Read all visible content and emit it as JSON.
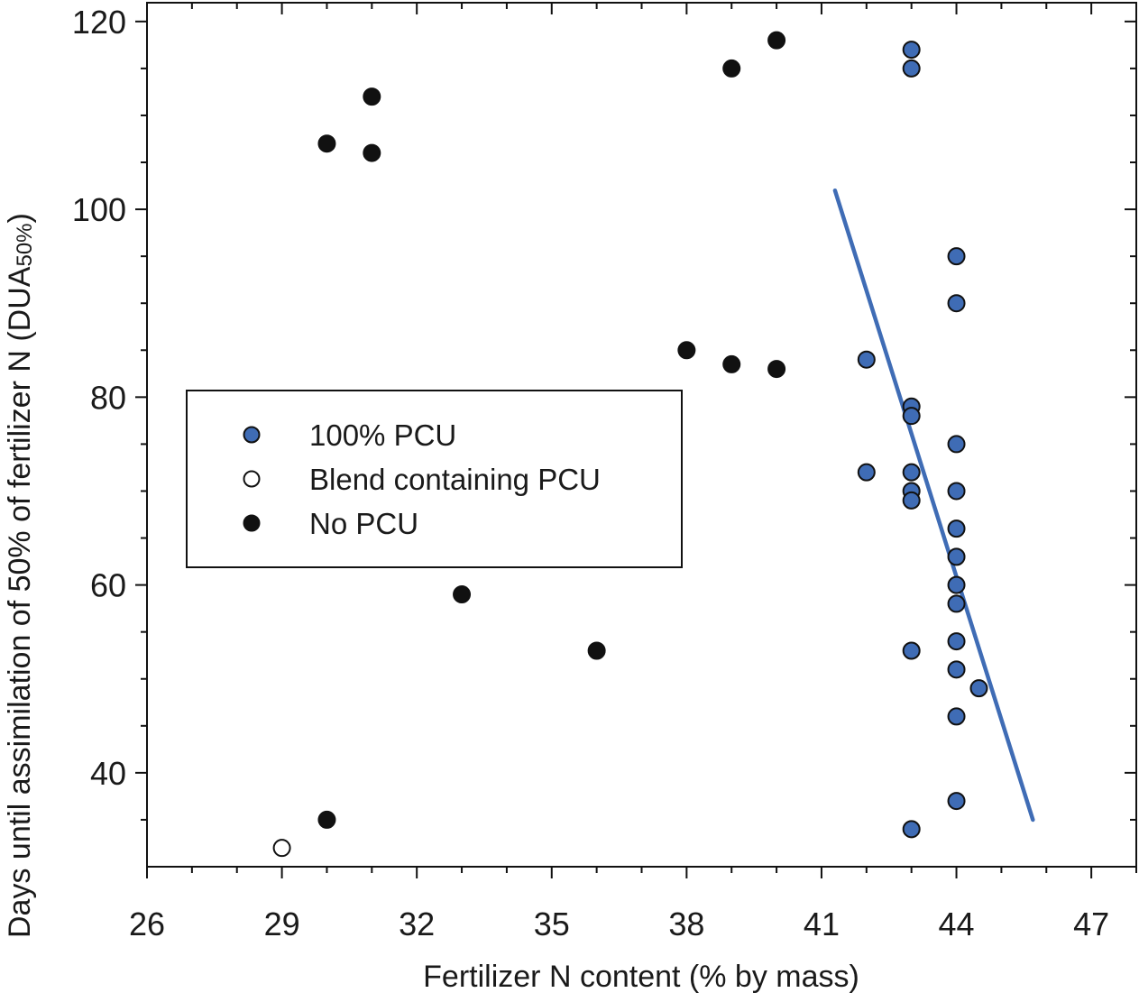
{
  "chart_data": {
    "type": "scatter",
    "xlabel": "Fertilizer N content (% by mass)",
    "ylabel_main": "Days until assimilation of 50% of fertilizer N (DUA",
    "ylabel_sub": "50%",
    "ylabel_close": ")",
    "xlim": [
      26,
      48
    ],
    "ylim": [
      30,
      122
    ],
    "xticks": [
      26,
      29,
      32,
      35,
      38,
      41,
      44,
      47
    ],
    "yticks": [
      40,
      60,
      80,
      100,
      120
    ],
    "grid": false,
    "legend_position": "middle-left",
    "colors": {
      "pcu": "#3f6cb5",
      "blend": "#ffffff",
      "no_pcu": "#111111",
      "trend": "#3f6cb5"
    },
    "series": [
      {
        "name": "100% PCU",
        "marker": "filled-blue",
        "points": [
          [
            43,
            117
          ],
          [
            43,
            115
          ],
          [
            42,
            84
          ],
          [
            42,
            72
          ],
          [
            43,
            79
          ],
          [
            43,
            78
          ],
          [
            43,
            72
          ],
          [
            43,
            70
          ],
          [
            43,
            69
          ],
          [
            43,
            53
          ],
          [
            43,
            34
          ],
          [
            44,
            95
          ],
          [
            44,
            90
          ],
          [
            44,
            75
          ],
          [
            44,
            70
          ],
          [
            44,
            66
          ],
          [
            44,
            63
          ],
          [
            44,
            60
          ],
          [
            44,
            58
          ],
          [
            44,
            54
          ],
          [
            44,
            51
          ],
          [
            44,
            46
          ],
          [
            44,
            37
          ],
          [
            44.5,
            49
          ]
        ]
      },
      {
        "name": "Blend containing PCU",
        "marker": "open",
        "points": [
          [
            29,
            32
          ]
        ]
      },
      {
        "name": "No PCU",
        "marker": "filled-black",
        "points": [
          [
            30,
            107
          ],
          [
            31,
            112
          ],
          [
            31,
            106
          ],
          [
            30,
            35
          ],
          [
            33,
            59
          ],
          [
            36,
            53
          ],
          [
            38,
            85
          ],
          [
            39,
            83.5
          ],
          [
            40,
            83
          ],
          [
            39,
            115
          ],
          [
            40,
            118
          ]
        ]
      }
    ],
    "trend_line": {
      "from": [
        41.3,
        102
      ],
      "to": [
        45.7,
        35
      ]
    }
  }
}
